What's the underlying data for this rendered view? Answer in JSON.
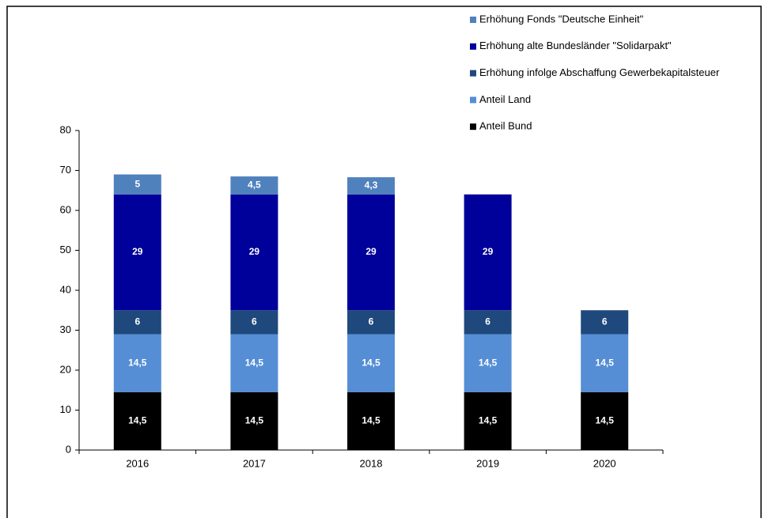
{
  "chart_data": {
    "type": "stacked_bar",
    "categories": [
      "2016",
      "2017",
      "2018",
      "2019",
      "2020"
    ],
    "series": [
      {
        "name": "Anteil Bund",
        "color": "#000000",
        "values": [
          14.5,
          14.5,
          14.5,
          14.5,
          14.5
        ],
        "value_labels": [
          "14,5",
          "14,5",
          "14,5",
          "14,5",
          "14,5"
        ]
      },
      {
        "name": "Anteil Land",
        "color": "#558ed5",
        "values": [
          14.5,
          14.5,
          14.5,
          14.5,
          14.5
        ],
        "value_labels": [
          "14,5",
          "14,5",
          "14,5",
          "14,5",
          "14,5"
        ]
      },
      {
        "name": "Erhöhung infolge Abschaffung Gewerbekapitalsteuer",
        "color": "#1f497d",
        "values": [
          6,
          6,
          6,
          6,
          6
        ]
      },
      {
        "name": "Erhöhung alte Bundesländer \"Solidarpakt\"",
        "color": "#00009a",
        "values": [
          29,
          29,
          29,
          29,
          null
        ]
      },
      {
        "name": "Erhöhung Fonds \"Deutsche Einheit\"",
        "color": "#4f81bd",
        "values": [
          5,
          4.5,
          4.3,
          null,
          null
        ],
        "value_labels": [
          "5",
          "4,5",
          "4,3",
          null,
          null
        ]
      }
    ],
    "ylim": [
      0,
      80
    ],
    "yticks": [
      0,
      10,
      20,
      30,
      40,
      50,
      60,
      70,
      80
    ],
    "legend": "top-right"
  }
}
